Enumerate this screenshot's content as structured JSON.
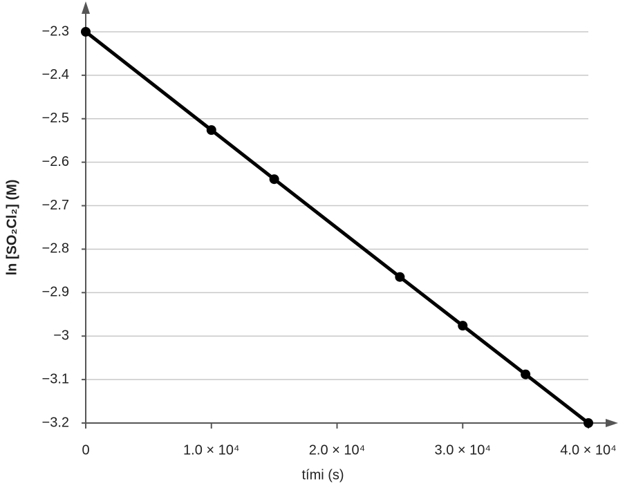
{
  "chart_data": {
    "type": "line",
    "x_label": "tími (s)",
    "y_label": "ln [SO₂Cl₂] (M)",
    "x": [
      0,
      10000,
      15000,
      25000,
      30000,
      35000,
      40000
    ],
    "series": [
      {
        "color": "#000000",
        "values": [
          -2.3,
          -2.526,
          -2.639,
          -2.864,
          -2.976,
          -3.088,
          -3.2
        ]
      }
    ],
    "xlim": [
      0,
      40000
    ],
    "xticks": [
      0,
      {
        "value": 10000,
        "label": "1.0 × 10⁴"
      },
      {
        "value": 20000,
        "label": "2.0 × 10⁴"
      },
      {
        "value": 30000,
        "label": "3.0 × 10⁴"
      },
      {
        "value": 40000,
        "label": "4.0 × 10⁴"
      }
    ],
    "ylim": [
      -3.2,
      -2.3
    ],
    "yticks": [
      {
        "value": -2.3,
        "label": "−2.3"
      },
      {
        "value": -2.4,
        "label": "−2.4"
      },
      {
        "value": -2.5,
        "label": "−2.5"
      },
      {
        "value": -2.6,
        "label": "−2.6"
      },
      {
        "value": -2.7,
        "label": "−2.7"
      },
      {
        "value": -2.8,
        "label": "−2.8"
      },
      {
        "value": -2.9,
        "label": "−2.9"
      },
      {
        "value": -3,
        "label": "−3"
      },
      {
        "value": -3.1,
        "label": "−3.1"
      },
      {
        "value": -3.2,
        "label": "−3.2"
      }
    ],
    "grid": true
  }
}
